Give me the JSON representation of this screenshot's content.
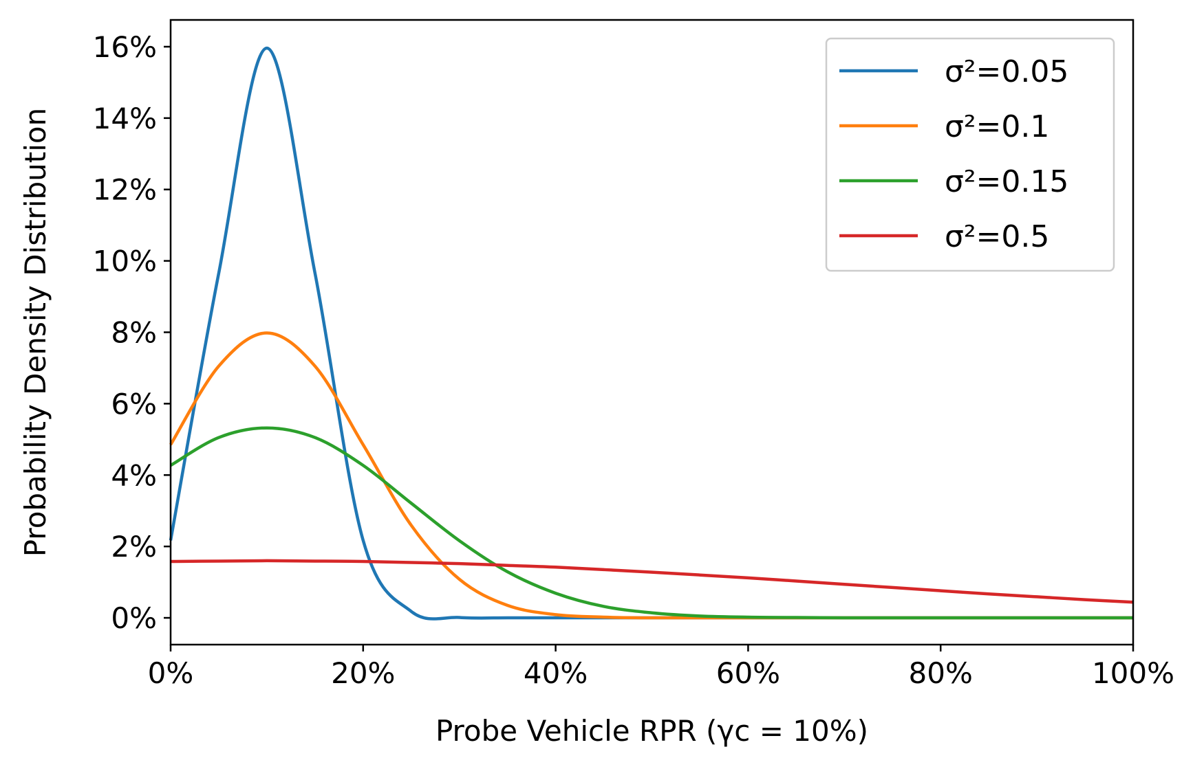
{
  "chart_data": {
    "type": "line",
    "xlabel": "Probe Vehicle RPR (γc = 10%)",
    "ylabel": "Probability Density Distribution",
    "xlim": [
      0,
      1
    ],
    "ylim": [
      -0.0075,
      0.1675
    ],
    "x_ticks": [
      0,
      0.2,
      0.4,
      0.6,
      0.8,
      1.0
    ],
    "x_tick_labels": [
      "0%",
      "20%",
      "40%",
      "60%",
      "80%",
      "100%"
    ],
    "y_ticks": [
      0,
      0.02,
      0.04,
      0.06,
      0.08,
      0.1,
      0.12,
      0.14,
      0.16
    ],
    "y_tick_labels": [
      "0%",
      "2%",
      "4%",
      "6%",
      "8%",
      "10%",
      "12%",
      "14%",
      "16%"
    ],
    "grid": false,
    "legend_position": "top-right",
    "x": [
      0,
      0.05,
      0.1,
      0.15,
      0.2,
      0.25,
      0.3,
      0.35,
      0.4,
      0.45,
      0.5,
      0.55,
      0.6,
      0.65,
      0.7,
      0.75,
      0.8,
      0.85,
      0.9,
      0.95,
      1.0
    ],
    "series": [
      {
        "name": "σ²=0.05",
        "color": "#1f77b4",
        "values": [
          0.0217,
          0.0965,
          0.1596,
          0.0965,
          0.0217,
          0.0018,
          0.0001,
          0,
          0,
          0,
          0,
          0,
          0,
          0,
          0,
          0,
          0,
          0,
          0,
          0,
          0
        ]
      },
      {
        "name": "σ²=0.1",
        "color": "#ff7f0e",
        "values": [
          0.0485,
          0.0705,
          0.0798,
          0.0705,
          0.0485,
          0.0259,
          0.0108,
          0.0035,
          0.0009,
          0.0002,
          0,
          0,
          0,
          0,
          0,
          0,
          0,
          0,
          0,
          0,
          0
        ]
      },
      {
        "name": "σ²=0.15",
        "color": "#2ca02c",
        "values": [
          0.0427,
          0.0505,
          0.0532,
          0.0505,
          0.0427,
          0.0321,
          0.0216,
          0.0129,
          0.0069,
          0.0032,
          0.0014,
          0.0005,
          0.0002,
          0.0001,
          0,
          0,
          0,
          0,
          0,
          0,
          0
        ]
      },
      {
        "name": "σ²=0.5",
        "color": "#d62728",
        "values": [
          0.0158,
          0.0159,
          0.016,
          0.0159,
          0.0158,
          0.0155,
          0.0152,
          0.0147,
          0.0142,
          0.0135,
          0.0128,
          0.012,
          0.0112,
          0.0103,
          0.0094,
          0.0085,
          0.0076,
          0.0067,
          0.0059,
          0.0051,
          0.0044
        ]
      }
    ]
  }
}
